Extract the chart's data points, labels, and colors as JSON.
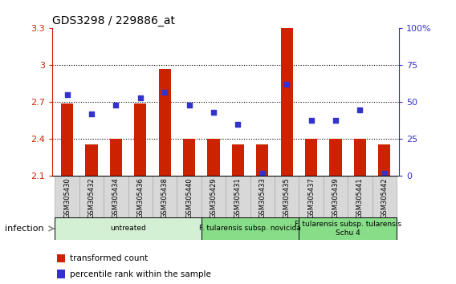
{
  "title": "GDS3298 / 229886_at",
  "samples": [
    "GSM305430",
    "GSM305432",
    "GSM305434",
    "GSM305436",
    "GSM305438",
    "GSM305440",
    "GSM305429",
    "GSM305431",
    "GSM305433",
    "GSM305435",
    "GSM305437",
    "GSM305439",
    "GSM305441",
    "GSM305442"
  ],
  "bar_values": [
    2.69,
    2.36,
    2.4,
    2.69,
    2.97,
    2.4,
    2.4,
    2.36,
    2.36,
    3.3,
    2.4,
    2.4,
    2.4,
    2.36
  ],
  "dot_values": [
    55,
    42,
    48,
    53,
    57,
    48,
    43,
    35,
    2,
    62,
    38,
    38,
    45,
    2
  ],
  "bar_bottom": 2.1,
  "ylim_left": [
    2.1,
    3.3
  ],
  "ylim_right": [
    0,
    100
  ],
  "yticks_left": [
    2.1,
    2.4,
    2.7,
    3.0,
    3.3
  ],
  "ytick_labels_left": [
    "2.1",
    "2.4",
    "2.7",
    "3",
    "3.3"
  ],
  "yticks_right": [
    0,
    25,
    50,
    75,
    100
  ],
  "ytick_labels_right": [
    "0",
    "25",
    "50",
    "75",
    "100%"
  ],
  "hlines": [
    2.4,
    2.7,
    3.0
  ],
  "bar_color": "#cc2200",
  "dot_color": "#3333cc",
  "groups": [
    {
      "label": "untreated",
      "start": 0,
      "end": 6,
      "color": "#d4f0d4"
    },
    {
      "label": "F. tularensis subsp. novicida",
      "start": 6,
      "end": 10,
      "color": "#88dd88"
    },
    {
      "label": "F. tularensis subsp. tularensis\nSchu 4",
      "start": 10,
      "end": 14,
      "color": "#88dd88"
    }
  ],
  "infection_label": "infection",
  "legend_items": [
    {
      "color": "#cc2200",
      "label": "transformed count"
    },
    {
      "color": "#3333cc",
      "label": "percentile rank within the sample"
    }
  ],
  "sample_bg_color": "#d8d8d8",
  "sample_edge_color": "#aaaaaa"
}
